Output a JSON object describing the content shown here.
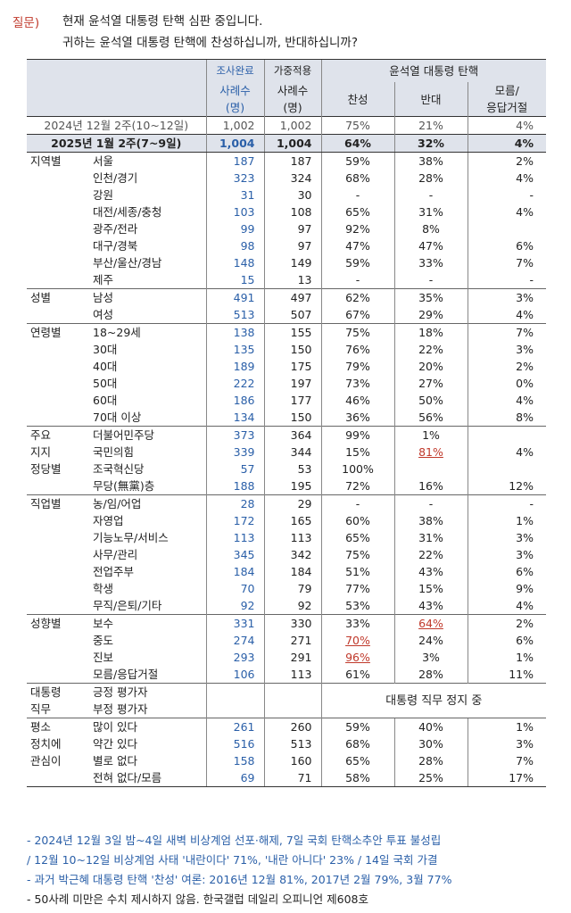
{
  "question": {
    "label": "질문)",
    "line1": "현재 윤석열 대통령 탄핵 심판 중입니다.",
    "line2": "귀하는 윤석열 대통령 탄핵에 찬성하십니까, 반대하십니까?"
  },
  "header": {
    "col_done": "조사완료",
    "col_weighted": "가중적용",
    "group": "윤석열 대통령 탄핵",
    "cases": "사례수",
    "unit": "(명)",
    "favor": "찬성",
    "oppose": "반대",
    "unsure": "모름/",
    "unsure2": "응답거절"
  },
  "prev_row": {
    "label": "2024년 12월 2주(10~12일)",
    "n": "1,002",
    "w": "1,002",
    "favor": "75%",
    "oppose": "21%",
    "unsure": "4%"
  },
  "main_row": {
    "label": "2025년 1월 2주(7~9일)",
    "n": "1,004",
    "w": "1,004",
    "favor": "64%",
    "oppose": "32%",
    "unsure": "4%"
  },
  "groups": [
    {
      "name": "지역별",
      "rows": [
        {
          "sub": "서울",
          "n": "187",
          "w": "187",
          "favor": "59%",
          "oppose": "38%",
          "unsure": "2%"
        },
        {
          "sub": "인천/경기",
          "n": "323",
          "w": "324",
          "favor": "68%",
          "oppose": "28%",
          "unsure": "4%"
        },
        {
          "sub": "강원",
          "n": "31",
          "w": "30",
          "favor": "-",
          "oppose": "-",
          "unsure": "-"
        },
        {
          "sub": "대전/세종/충청",
          "n": "103",
          "w": "108",
          "favor": "65%",
          "oppose": "31%",
          "unsure": "4%"
        },
        {
          "sub": "광주/전라",
          "n": "99",
          "w": "97",
          "favor": "92%",
          "oppose": "8%",
          "unsure": ""
        },
        {
          "sub": "대구/경북",
          "n": "98",
          "w": "97",
          "favor": "47%",
          "oppose": "47%",
          "unsure": "6%"
        },
        {
          "sub": "부산/울산/경남",
          "n": "148",
          "w": "149",
          "favor": "59%",
          "oppose": "33%",
          "unsure": "7%"
        },
        {
          "sub": "제주",
          "n": "15",
          "w": "13",
          "favor": "-",
          "oppose": "-",
          "unsure": "-"
        }
      ]
    },
    {
      "name": "성별",
      "rows": [
        {
          "sub": "남성",
          "n": "491",
          "w": "497",
          "favor": "62%",
          "oppose": "35%",
          "unsure": "3%"
        },
        {
          "sub": "여성",
          "n": "513",
          "w": "507",
          "favor": "67%",
          "oppose": "29%",
          "unsure": "4%"
        }
      ]
    },
    {
      "name": "연령별",
      "rows": [
        {
          "sub": "18~29세",
          "n": "138",
          "w": "155",
          "favor": "75%",
          "oppose": "18%",
          "unsure": "7%"
        },
        {
          "sub": "30대",
          "n": "135",
          "w": "150",
          "favor": "76%",
          "oppose": "22%",
          "unsure": "3%"
        },
        {
          "sub": "40대",
          "n": "189",
          "w": "175",
          "favor": "79%",
          "oppose": "20%",
          "unsure": "2%"
        },
        {
          "sub": "50대",
          "n": "222",
          "w": "197",
          "favor": "73%",
          "oppose": "27%",
          "unsure": "0%"
        },
        {
          "sub": "60대",
          "n": "186",
          "w": "177",
          "favor": "46%",
          "oppose": "50%",
          "unsure": "4%"
        },
        {
          "sub": "70대 이상",
          "n": "134",
          "w": "150",
          "favor": "36%",
          "oppose": "56%",
          "unsure": "8%"
        }
      ]
    },
    {
      "name": "주요",
      "name2": "지지",
      "name3": "정당별",
      "rows": [
        {
          "sub": "더불어민주당",
          "n": "373",
          "w": "364",
          "favor": "99%",
          "oppose": "1%",
          "unsure": ""
        },
        {
          "sub": "국민의힘",
          "n": "339",
          "w": "344",
          "favor": "15%",
          "oppose": "81%",
          "unsure": "4%",
          "hl_oppose": true
        },
        {
          "sub": "조국혁신당",
          "n": "57",
          "w": "53",
          "favor": "100%",
          "oppose": "",
          "unsure": ""
        },
        {
          "sub": "무당(無黨)층",
          "n": "188",
          "w": "195",
          "favor": "72%",
          "oppose": "16%",
          "unsure": "12%"
        }
      ]
    },
    {
      "name": "직업별",
      "rows": [
        {
          "sub": "농/임/어업",
          "n": "28",
          "w": "29",
          "favor": "-",
          "oppose": "-",
          "unsure": "-"
        },
        {
          "sub": "자영업",
          "n": "172",
          "w": "165",
          "favor": "60%",
          "oppose": "38%",
          "unsure": "1%"
        },
        {
          "sub": "기능노무/서비스",
          "n": "113",
          "w": "113",
          "favor": "65%",
          "oppose": "31%",
          "unsure": "3%"
        },
        {
          "sub": "사무/관리",
          "n": "345",
          "w": "342",
          "favor": "75%",
          "oppose": "22%",
          "unsure": "3%"
        },
        {
          "sub": "전업주부",
          "n": "184",
          "w": "184",
          "favor": "51%",
          "oppose": "43%",
          "unsure": "6%"
        },
        {
          "sub": "학생",
          "n": "70",
          "w": "79",
          "favor": "77%",
          "oppose": "15%",
          "unsure": "9%"
        },
        {
          "sub": "무직/은퇴/기타",
          "n": "92",
          "w": "92",
          "favor": "53%",
          "oppose": "43%",
          "unsure": "4%"
        }
      ]
    },
    {
      "name": "성향별",
      "rows": [
        {
          "sub": "보수",
          "n": "331",
          "w": "330",
          "favor": "33%",
          "oppose": "64%",
          "unsure": "2%",
          "hl_oppose": true
        },
        {
          "sub": "중도",
          "n": "274",
          "w": "271",
          "favor": "70%",
          "oppose": "24%",
          "unsure": "6%",
          "hl_favor": true
        },
        {
          "sub": "진보",
          "n": "293",
          "w": "291",
          "favor": "96%",
          "oppose": "3%",
          "unsure": "1%",
          "hl_favor": true
        },
        {
          "sub": "모름/응답거절",
          "n": "106",
          "w": "113",
          "favor": "61%",
          "oppose": "28%",
          "unsure": "11%"
        }
      ]
    }
  ],
  "eval": {
    "name": "대통령",
    "name2": "직무",
    "sub1": "긍정 평가자",
    "sub2": "부정 평가자",
    "suspend": "대통령 직무 정지 중"
  },
  "interest": {
    "name": "평소",
    "name2": "정치에",
    "name3": "관심이",
    "rows": [
      {
        "sub": "많이 있다",
        "n": "261",
        "w": "260",
        "favor": "59%",
        "oppose": "40%",
        "unsure": "1%"
      },
      {
        "sub": "약간 있다",
        "n": "516",
        "w": "513",
        "favor": "68%",
        "oppose": "30%",
        "unsure": "3%"
      },
      {
        "sub": "별로 없다",
        "n": "158",
        "w": "160",
        "favor": "65%",
        "oppose": "28%",
        "unsure": "7%"
      },
      {
        "sub": "전혀 없다/모름",
        "n": "69",
        "w": "71",
        "favor": "58%",
        "oppose": "25%",
        "unsure": "17%"
      }
    ]
  },
  "notes": {
    "n1": "- 2024년 12월 3일 밤~4일 새벽 비상계엄 선포·해제, 7일 국회 탄핵소추안 투표 불성립",
    "n2": " / 12월 10~12일 비상계엄 사태 '내란이다' 71%, '내란 아니다' 23% / 14일 국회 가결",
    "n3": "- 과거 박근혜 대통령 탄핵 '찬성' 여론: 2016년 12월 81%, 2017년 2월 79%, 3월 77%",
    "n4": "- 50사례 미만은 수치 제시하지 않음. 한국갤럽 데일리 오피니언 제608호"
  },
  "colors": {
    "accent": "#2a5fa8",
    "highlight": "#c0392b",
    "header_bg": "#dfe3eb"
  }
}
